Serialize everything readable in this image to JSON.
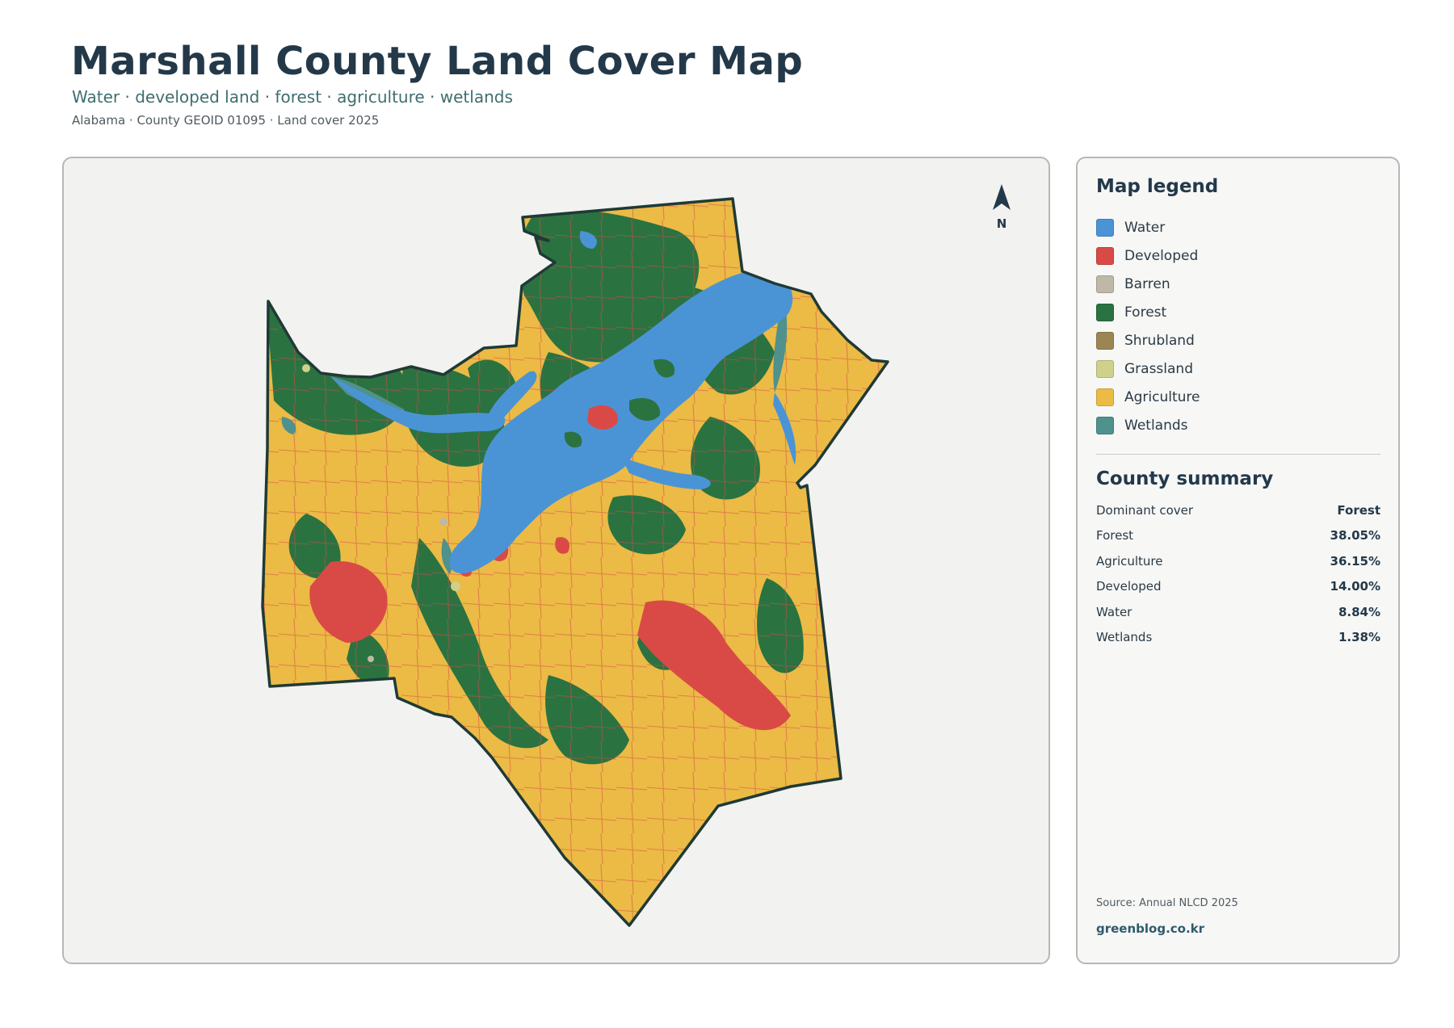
{
  "header": {
    "title": "Marshall County Land Cover Map",
    "subtitle": "Water · developed land · forest · agriculture · wetlands",
    "meta": "Alabama · County GEOID 01095 · Land cover 2025"
  },
  "map": {
    "north_label": "N",
    "colors": {
      "water": "#4a94d6",
      "developed": "#d94a46",
      "barren": "#bfb8a6",
      "forest": "#2b7241",
      "shrubland": "#9b8653",
      "grassland": "#cfd08a",
      "agriculture": "#ebbb45",
      "wetlands": "#4f918c",
      "boundary": "#1f3a36"
    }
  },
  "legend": {
    "title": "Map legend",
    "items": [
      {
        "label": "Water",
        "color": "#4a94d6"
      },
      {
        "label": "Developed",
        "color": "#d94a46"
      },
      {
        "label": "Barren",
        "color": "#bfb8a6"
      },
      {
        "label": "Forest",
        "color": "#2b7241"
      },
      {
        "label": "Shrubland",
        "color": "#9b8653"
      },
      {
        "label": "Grassland",
        "color": "#cfd08a"
      },
      {
        "label": "Agriculture",
        "color": "#ebbb45"
      },
      {
        "label": "Wetlands",
        "color": "#4f918c"
      }
    ]
  },
  "summary": {
    "title": "County summary",
    "rows": [
      {
        "key": "Dominant cover",
        "value": "Forest"
      },
      {
        "key": "Forest",
        "value": "38.05%"
      },
      {
        "key": "Agriculture",
        "value": "36.15%"
      },
      {
        "key": "Developed",
        "value": "14.00%"
      },
      {
        "key": "Water",
        "value": "8.84%"
      },
      {
        "key": "Wetlands",
        "value": "1.38%"
      }
    ]
  },
  "footer": {
    "source": "Source: Annual NLCD 2025",
    "site": "greenblog.co.kr"
  }
}
